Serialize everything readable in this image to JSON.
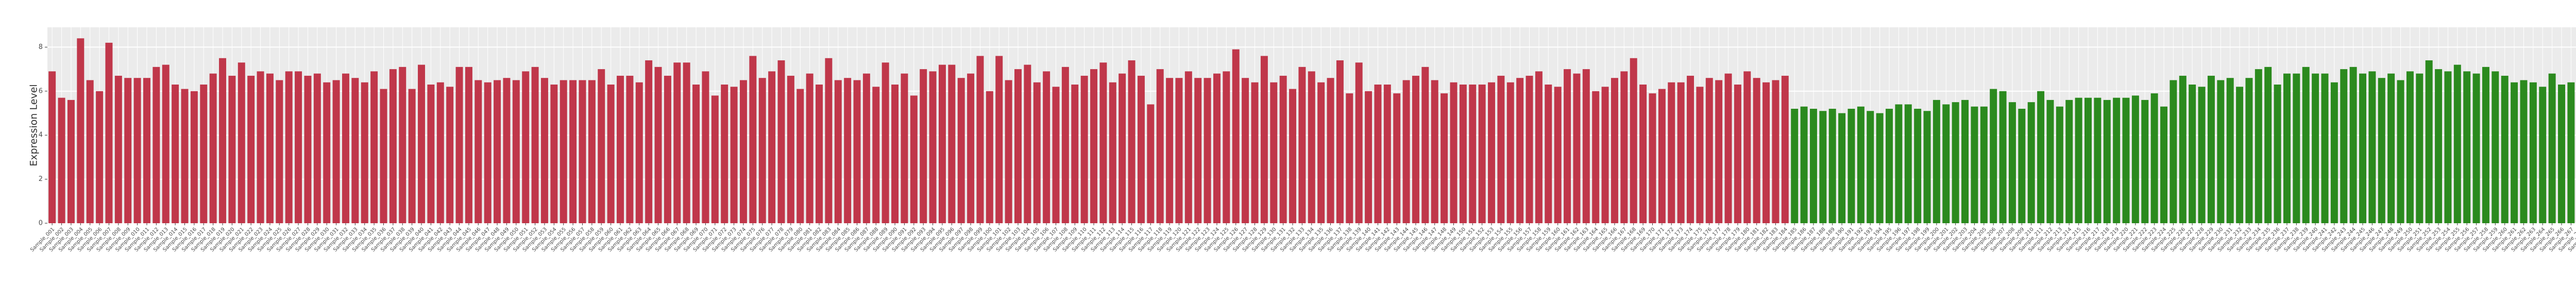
{
  "chart_data": {
    "type": "bar",
    "y_label": "Expression Level",
    "categories": [
      "Sample_001",
      "Sample_002",
      "Sample_003",
      "Sample_004",
      "Sample_005",
      "Sample_006",
      "Sample_007",
      "Sample_008",
      "Sample_009",
      "Sample_010",
      "Sample_011",
      "Sample_012",
      "Sample_013",
      "Sample_014",
      "Sample_015",
      "Sample_016",
      "Sample_017",
      "Sample_018",
      "Sample_019",
      "Sample_020",
      "Sample_021",
      "Sample_022",
      "Sample_023",
      "Sample_024",
      "Sample_025",
      "Sample_026",
      "Sample_027",
      "Sample_028",
      "Sample_029",
      "Sample_030",
      "Sample_031",
      "Sample_032",
      "Sample_033",
      "Sample_034",
      "Sample_035",
      "Sample_036",
      "Sample_037",
      "Sample_038",
      "Sample_039",
      "Sample_040",
      "Sample_041",
      "Sample_042",
      "Sample_043",
      "Sample_044",
      "Sample_045",
      "Sample_046",
      "Sample_047",
      "Sample_048",
      "Sample_049",
      "Sample_050",
      "Sample_051",
      "Sample_052",
      "Sample_053",
      "Sample_054",
      "Sample_055",
      "Sample_056",
      "Sample_057",
      "Sample_058",
      "Sample_059",
      "Sample_060",
      "Sample_061",
      "Sample_062",
      "Sample_063",
      "Sample_064",
      "Sample_065",
      "Sample_066",
      "Sample_067",
      "Sample_068",
      "Sample_069",
      "Sample_070",
      "Sample_071",
      "Sample_072",
      "Sample_073",
      "Sample_074",
      "Sample_075",
      "Sample_076",
      "Sample_077",
      "Sample_078",
      "Sample_079",
      "Sample_080",
      "Sample_081",
      "Sample_082",
      "Sample_083",
      "Sample_084",
      "Sample_085",
      "Sample_086",
      "Sample_087",
      "Sample_088",
      "Sample_089",
      "Sample_090",
      "Sample_091",
      "Sample_092",
      "Sample_093",
      "Sample_094",
      "Sample_095",
      "Sample_096",
      "Sample_097",
      "Sample_098",
      "Sample_099",
      "Sample_100",
      "Sample_101",
      "Sample_102",
      "Sample_103",
      "Sample_104",
      "Sample_105",
      "Sample_106",
      "Sample_107",
      "Sample_108",
      "Sample_109",
      "Sample_110",
      "Sample_111",
      "Sample_112",
      "Sample_113",
      "Sample_114",
      "Sample_115",
      "Sample_116",
      "Sample_117",
      "Sample_118",
      "Sample_119",
      "Sample_120",
      "Sample_121",
      "Sample_122",
      "Sample_123",
      "Sample_124",
      "Sample_125",
      "Sample_126",
      "Sample_127",
      "Sample_128",
      "Sample_129",
      "Sample_130",
      "Sample_131",
      "Sample_132",
      "Sample_133",
      "Sample_134",
      "Sample_135",
      "Sample_136",
      "Sample_137",
      "Sample_138",
      "Sample_139",
      "Sample_140",
      "Sample_141",
      "Sample_142",
      "Sample_143",
      "Sample_144",
      "Sample_145",
      "Sample_146",
      "Sample_147",
      "Sample_148",
      "Sample_149",
      "Sample_150",
      "Sample_151",
      "Sample_152",
      "Sample_153",
      "Sample_154",
      "Sample_155",
      "Sample_156",
      "Sample_157",
      "Sample_158",
      "Sample_159",
      "Sample_160",
      "Sample_161",
      "Sample_162",
      "Sample_163",
      "Sample_164",
      "Sample_165",
      "Sample_166",
      "Sample_167",
      "Sample_168",
      "Sample_169",
      "Sample_170",
      "Sample_171",
      "Sample_172",
      "Sample_173",
      "Sample_174",
      "Sample_175",
      "Sample_176",
      "Sample_177",
      "Sample_178",
      "Sample_179",
      "Sample_180",
      "Sample_181",
      "Sample_182",
      "Sample_183",
      "Sample_184",
      "Sample_185",
      "Sample_186",
      "Sample_187",
      "Sample_188",
      "Sample_189",
      "Sample_190",
      "Sample_191",
      "Sample_192",
      "Sample_193",
      "Sample_194",
      "Sample_195",
      "Sample_196",
      "Sample_197",
      "Sample_198",
      "Sample_199",
      "Sample_200",
      "Sample_201",
      "Sample_202",
      "Sample_203",
      "Sample_204",
      "Sample_205",
      "Sample_206",
      "Sample_207",
      "Sample_208",
      "Sample_209",
      "Sample_210",
      "Sample_211",
      "Sample_212",
      "Sample_213",
      "Sample_214",
      "Sample_215",
      "Sample_216",
      "Sample_217",
      "Sample_218",
      "Sample_219",
      "Sample_220",
      "Sample_221",
      "Sample_222",
      "Sample_223",
      "Sample_224",
      "Sample_225",
      "Sample_226",
      "Sample_227",
      "Sample_228",
      "Sample_229",
      "Sample_230",
      "Sample_231",
      "Sample_232",
      "Sample_233",
      "Sample_234",
      "Sample_235",
      "Sample_236",
      "Sample_237",
      "Sample_238",
      "Sample_239",
      "Sample_240",
      "Sample_241",
      "Sample_242",
      "Sample_243",
      "Sample_244",
      "Sample_245",
      "Sample_246",
      "Sample_247",
      "Sample_248",
      "Sample_249",
      "Sample_250",
      "Sample_251",
      "Sample_252",
      "Sample_253",
      "Sample_254",
      "Sample_255",
      "Sample_256",
      "Sample_257",
      "Sample_258",
      "Sample_259",
      "Sample_260",
      "Sample_261",
      "Sample_262",
      "Sample_263",
      "Sample_264",
      "Sample_265",
      "Sample_266",
      "Sample_267",
      "Sample_268",
      "Sample_269",
      "Sample_270",
      "Sample_271",
      "Sample_272",
      "Sample_273",
      "Sample_274",
      "Sample_275",
      "Sample_276"
    ],
    "values": [
      6.9,
      5.7,
      5.6,
      8.4,
      6.5,
      6.0,
      8.2,
      6.7,
      6.6,
      6.6,
      6.6,
      7.1,
      7.2,
      6.3,
      6.1,
      6.0,
      6.3,
      6.8,
      7.5,
      6.7,
      7.3,
      6.7,
      6.9,
      6.8,
      6.5,
      6.9,
      6.9,
      6.7,
      6.8,
      6.4,
      6.5,
      6.8,
      6.6,
      6.4,
      6.9,
      6.1,
      7.0,
      7.1,
      6.1,
      7.2,
      6.3,
      6.4,
      6.2,
      7.1,
      7.1,
      6.5,
      6.4,
      6.5,
      6.6,
      6.5,
      6.9,
      7.1,
      6.6,
      6.3,
      6.5,
      6.5,
      6.5,
      6.5,
      7.0,
      6.3,
      6.7,
      6.7,
      6.4,
      7.4,
      7.1,
      6.7,
      7.3,
      7.3,
      6.3,
      6.9,
      5.8,
      6.3,
      6.2,
      6.5,
      7.6,
      6.6,
      6.9,
      7.4,
      6.7,
      6.1,
      6.8,
      6.3,
      7.5,
      6.5,
      6.6,
      6.5,
      6.8,
      6.2,
      7.3,
      6.3,
      6.8,
      5.8,
      7.0,
      6.9,
      7.2,
      7.2,
      6.6,
      6.8,
      7.6,
      6.0,
      7.6,
      6.5,
      7.0,
      7.2,
      6.4,
      6.9,
      6.2,
      7.1,
      6.3,
      6.7,
      7.0,
      7.3,
      6.4,
      6.8,
      7.4,
      6.7,
      5.4,
      7.0,
      6.6,
      6.6,
      6.9,
      6.6,
      6.6,
      6.8,
      6.9,
      7.9,
      6.6,
      6.4,
      7.6,
      6.4,
      6.7,
      6.1,
      7.1,
      6.9,
      6.4,
      6.6,
      7.4,
      5.9,
      7.3,
      6.0,
      6.3,
      6.3,
      5.9,
      6.5,
      6.7,
      7.1,
      6.5,
      5.9,
      6.4,
      6.3,
      6.3,
      6.3,
      6.4,
      6.7,
      6.4,
      6.6,
      6.7,
      6.9,
      6.3,
      6.2,
      7.0,
      6.8,
      7.0,
      6.0,
      6.2,
      6.6,
      6.9,
      7.5,
      6.3,
      5.9,
      6.1,
      6.4,
      6.4,
      6.7,
      6.2,
      6.6,
      6.5,
      6.8,
      6.3,
      6.9,
      6.6,
      6.4,
      6.5,
      6.7,
      5.2,
      5.3,
      5.2,
      5.1,
      5.2,
      5.0,
      5.2,
      5.3,
      5.1,
      5.0,
      5.2,
      5.4,
      5.4,
      5.2,
      5.1,
      5.6,
      5.4,
      5.5,
      5.6,
      5.3,
      5.3,
      6.1,
      6.0,
      5.5,
      5.2,
      5.5,
      6.0,
      5.6,
      5.3,
      5.6,
      5.7,
      5.7,
      5.7,
      5.6,
      5.7,
      5.7,
      5.8,
      5.6,
      5.9,
      5.3,
      6.5,
      6.7,
      6.3,
      6.2,
      6.7,
      6.5,
      6.6,
      6.2,
      6.6,
      7.0,
      7.1,
      6.3,
      6.8,
      6.8,
      7.1,
      6.8,
      6.8,
      6.4,
      7.0,
      7.1,
      6.8,
      6.9,
      6.6,
      6.8,
      6.5,
      6.9,
      6.8,
      7.4,
      7.0,
      6.9,
      7.2,
      6.9,
      6.8,
      7.1,
      6.9,
      6.7,
      6.4,
      6.5,
      6.4,
      6.2,
      6.8,
      6.3,
      6.4,
      6.6,
      6.2,
      6.8,
      7.0,
      7.0,
      6.9,
      7.1,
      6.5,
      7.1
    ],
    "colors": [
      "#c0374a",
      "#c0374a",
      "#c0374a",
      "#c0374a",
      "#c0374a",
      "#c0374a",
      "#c0374a",
      "#c0374a",
      "#c0374a",
      "#c0374a",
      "#c0374a",
      "#c0374a",
      "#c0374a",
      "#c0374a",
      "#c0374a",
      "#c0374a",
      "#c0374a",
      "#c0374a",
      "#c0374a",
      "#c0374a",
      "#c0374a",
      "#c0374a",
      "#c0374a",
      "#c0374a",
      "#c0374a",
      "#c0374a",
      "#c0374a",
      "#c0374a",
      "#c0374a",
      "#c0374a",
      "#c0374a",
      "#c0374a",
      "#c0374a",
      "#c0374a",
      "#c0374a",
      "#c0374a",
      "#c0374a",
      "#c0374a",
      "#c0374a",
      "#c0374a",
      "#c0374a",
      "#c0374a",
      "#c0374a",
      "#c0374a",
      "#c0374a",
      "#c0374a",
      "#c0374a",
      "#c0374a",
      "#c0374a",
      "#c0374a",
      "#c0374a",
      "#c0374a",
      "#c0374a",
      "#c0374a",
      "#c0374a",
      "#c0374a",
      "#c0374a",
      "#c0374a",
      "#c0374a",
      "#c0374a",
      "#c0374a",
      "#c0374a",
      "#c0374a",
      "#c0374a",
      "#c0374a",
      "#c0374a",
      "#c0374a",
      "#c0374a",
      "#c0374a",
      "#c0374a",
      "#c0374a",
      "#c0374a",
      "#c0374a",
      "#c0374a",
      "#c0374a",
      "#c0374a",
      "#c0374a",
      "#c0374a",
      "#c0374a",
      "#c0374a",
      "#c0374a",
      "#c0374a",
      "#c0374a",
      "#c0374a",
      "#c0374a",
      "#c0374a",
      "#c0374a",
      "#c0374a",
      "#c0374a",
      "#c0374a",
      "#c0374a",
      "#c0374a",
      "#c0374a",
      "#c0374a",
      "#c0374a",
      "#c0374a",
      "#c0374a",
      "#c0374a",
      "#c0374a",
      "#c0374a",
      "#c0374a",
      "#c0374a",
      "#c0374a",
      "#c0374a",
      "#c0374a",
      "#c0374a",
      "#c0374a",
      "#c0374a",
      "#c0374a",
      "#c0374a",
      "#c0374a",
      "#c0374a",
      "#c0374a",
      "#c0374a",
      "#c0374a",
      "#c0374a",
      "#c0374a",
      "#c0374a",
      "#c0374a",
      "#c0374a",
      "#c0374a",
      "#c0374a",
      "#c0374a",
      "#c0374a",
      "#c0374a",
      "#c0374a",
      "#c0374a",
      "#c0374a",
      "#c0374a",
      "#c0374a",
      "#c0374a",
      "#c0374a",
      "#c0374a",
      "#c0374a",
      "#c0374a",
      "#c0374a",
      "#c0374a",
      "#c0374a",
      "#c0374a",
      "#c0374a",
      "#c0374a",
      "#c0374a",
      "#c0374a",
      "#c0374a",
      "#c0374a",
      "#c0374a",
      "#c0374a",
      "#c0374a",
      "#c0374a",
      "#c0374a",
      "#c0374a",
      "#c0374a",
      "#c0374a",
      "#c0374a",
      "#c0374a",
      "#c0374a",
      "#c0374a",
      "#c0374a",
      "#c0374a",
      "#c0374a",
      "#c0374a",
      "#c0374a",
      "#c0374a",
      "#c0374a",
      "#c0374a",
      "#c0374a",
      "#c0374a",
      "#c0374a",
      "#c0374a",
      "#c0374a",
      "#c0374a",
      "#c0374a",
      "#c0374a",
      "#c0374a",
      "#c0374a",
      "#c0374a",
      "#c0374a",
      "#c0374a",
      "#c0374a",
      "#c0374a",
      "#c0374a",
      "#c0374a",
      "#c0374a",
      "#c0374a",
      "#2b8a1e",
      "#2b8a1e",
      "#2b8a1e",
      "#2b8a1e",
      "#2b8a1e",
      "#2b8a1e",
      "#2b8a1e",
      "#2b8a1e",
      "#2b8a1e",
      "#2b8a1e",
      "#2b8a1e",
      "#2b8a1e",
      "#2b8a1e",
      "#2b8a1e",
      "#2b8a1e",
      "#2b8a1e",
      "#2b8a1e",
      "#2b8a1e",
      "#2b8a1e",
      "#2b8a1e",
      "#2b8a1e",
      "#2b8a1e",
      "#2b8a1e",
      "#2b8a1e",
      "#2b8a1e",
      "#2b8a1e",
      "#2b8a1e",
      "#2b8a1e",
      "#2b8a1e",
      "#2b8a1e",
      "#2b8a1e",
      "#2b8a1e",
      "#2b8a1e",
      "#2b8a1e",
      "#2b8a1e",
      "#2b8a1e",
      "#2b8a1e",
      "#2b8a1e",
      "#2b8a1e",
      "#2b8a1e",
      "#2b8a1e",
      "#2b8a1e",
      "#2b8a1e",
      "#2b8a1e",
      "#2b8a1e",
      "#2b8a1e",
      "#2b8a1e",
      "#2b8a1e",
      "#2b8a1e",
      "#2b8a1e",
      "#2b8a1e",
      "#2b8a1e",
      "#2b8a1e",
      "#2b8a1e",
      "#2b8a1e",
      "#2b8a1e",
      "#2b8a1e",
      "#2b8a1e",
      "#2b8a1e",
      "#2b8a1e",
      "#2b8a1e",
      "#2b8a1e",
      "#2b8a1e",
      "#2b8a1e",
      "#2b8a1e",
      "#2b8a1e",
      "#2b8a1e",
      "#2b8a1e",
      "#2b8a1e",
      "#2b8a1e",
      "#2b8a1e",
      "#2b8a1e",
      "#2b8a1e",
      "#2b8a1e",
      "#2b8a1e",
      "#2b8a1e",
      "#2b8a1e",
      "#2b8a1e",
      "#2b8a1e",
      "#2b8a1e",
      "#2b8a1e",
      "#2b8a1e",
      "#2b8a1e",
      "#2b8a1e",
      "#2b8a1e",
      "#2b8a1e",
      "#2b8a1e",
      "#2b8a1e",
      "#2b8a1e",
      "#2b8a1e",
      "#2b8a1e",
      "#2b8a1e"
    ],
    "ylim": [
      0,
      8.9
    ],
    "yticks": [
      0,
      2,
      4,
      6,
      8
    ],
    "grid": true
  }
}
